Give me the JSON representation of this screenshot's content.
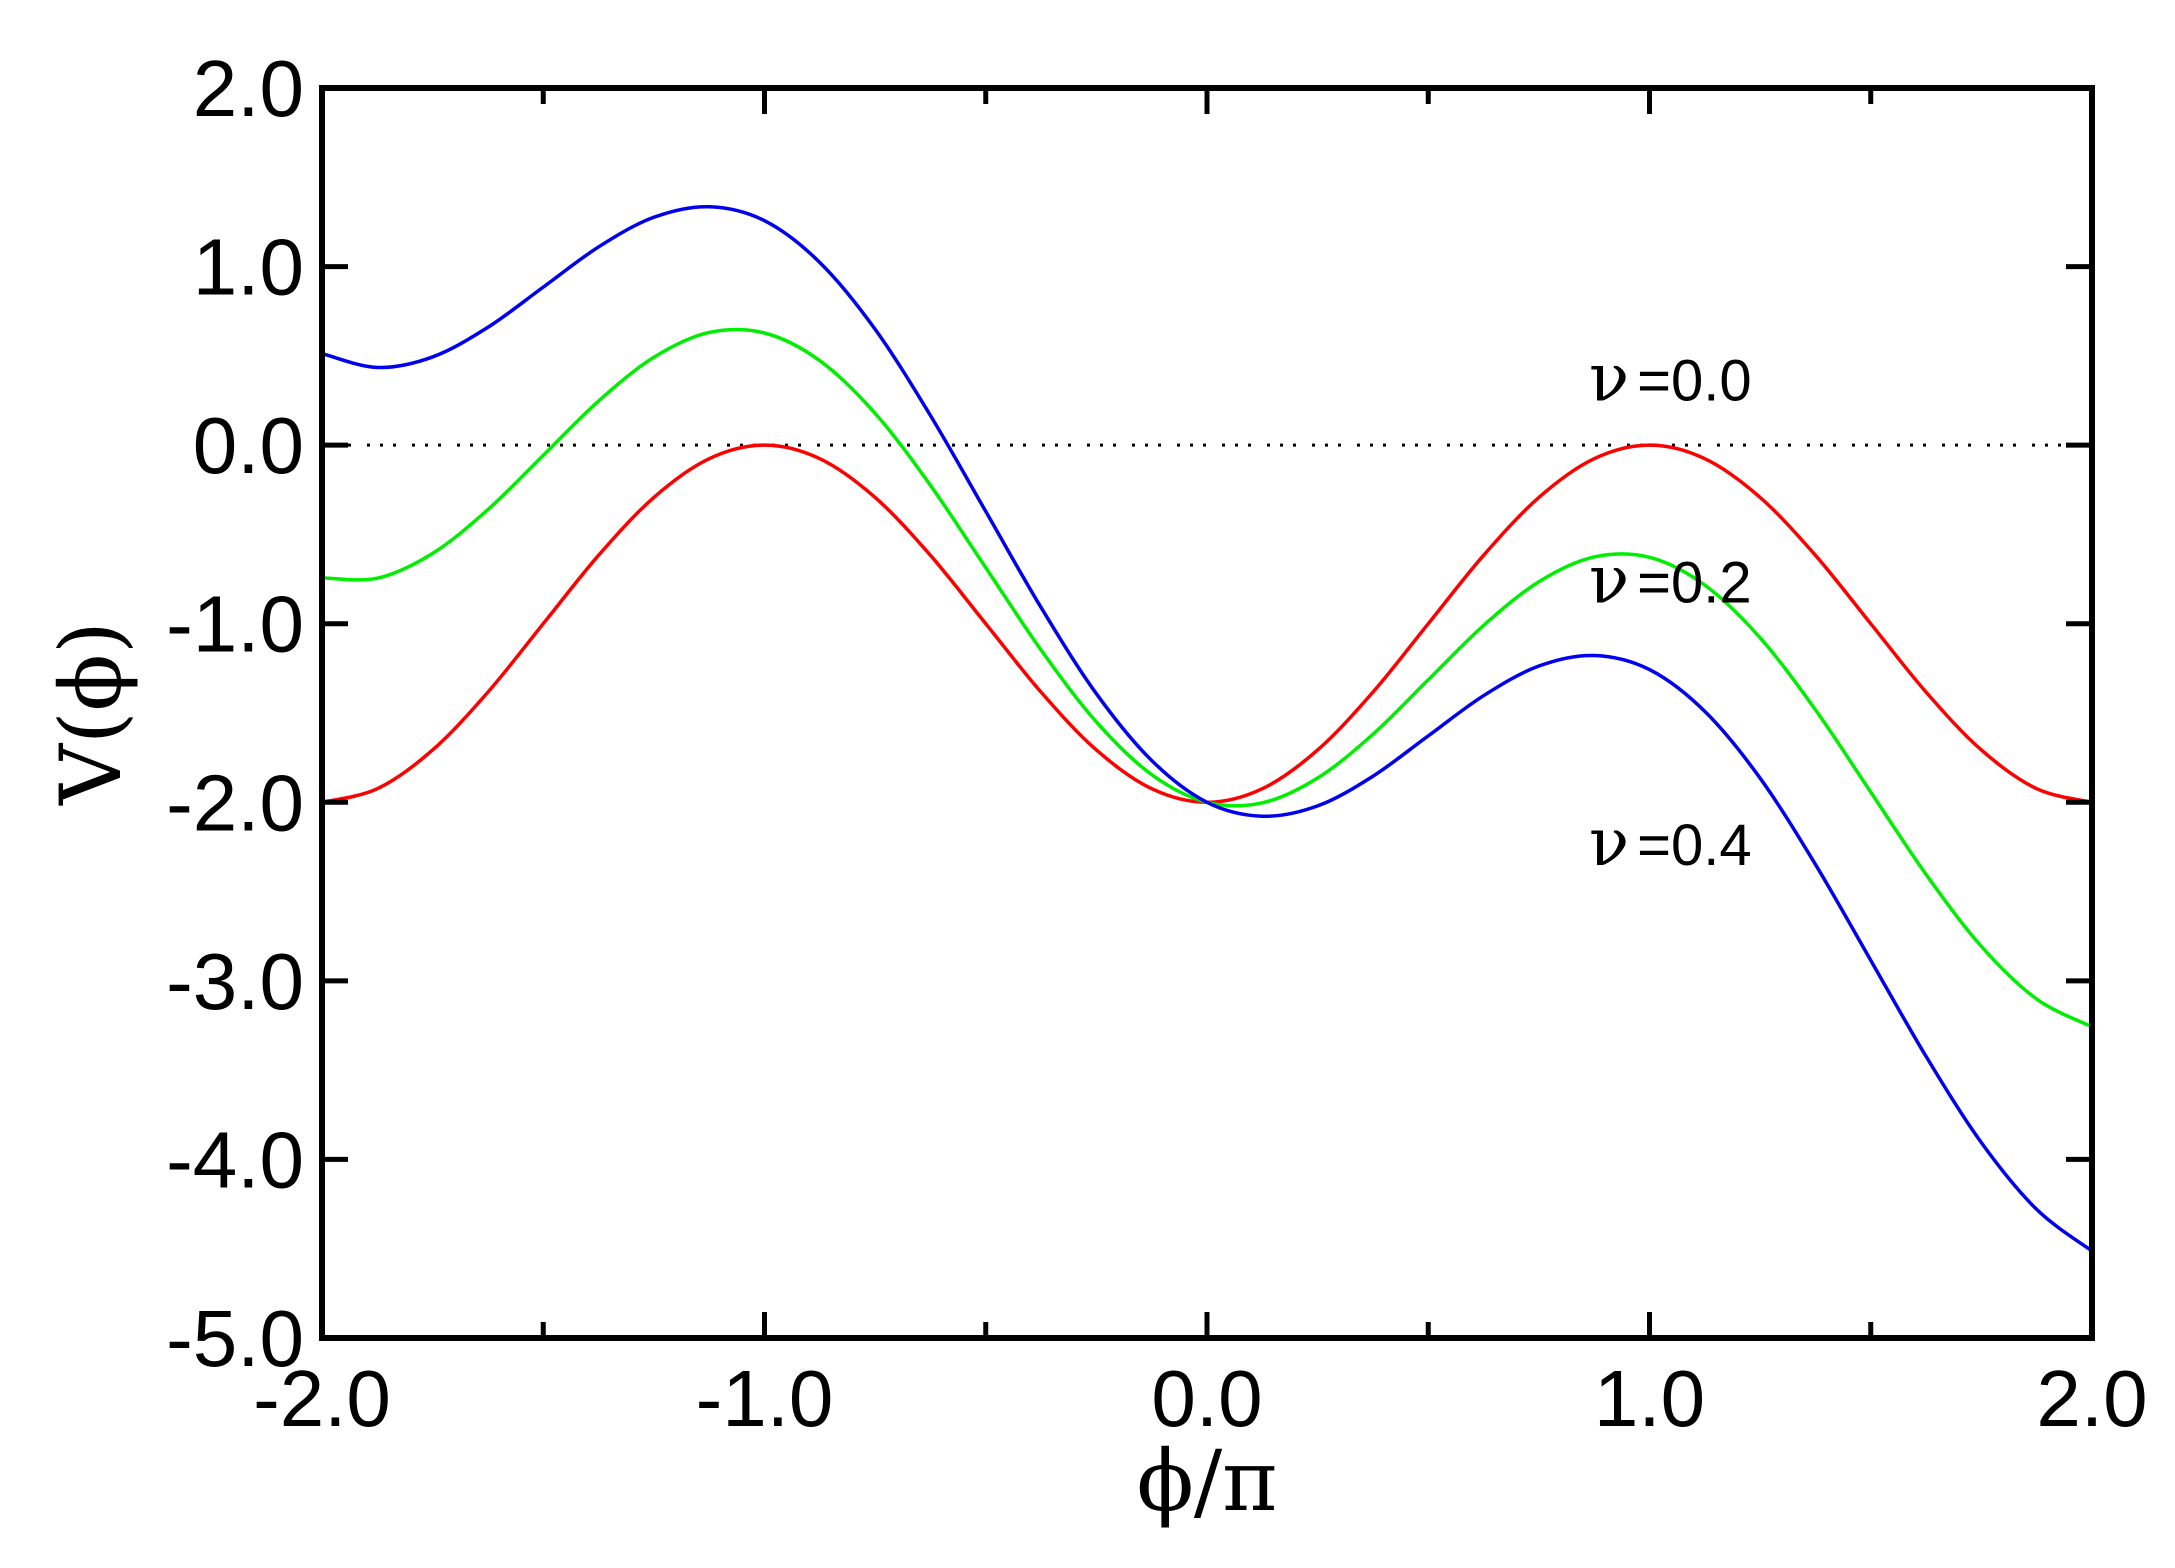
{
  "chart_data": {
    "type": "line",
    "title": "",
    "xlabel": "ϕ/π",
    "ylabel": "V(ϕ)",
    "xlim": [
      -2.0,
      2.0
    ],
    "ylim": [
      -5.0,
      2.0
    ],
    "xticks": [
      -2.0,
      -1.0,
      0.0,
      1.0,
      2.0
    ],
    "xtick_labels": [
      "-2.0",
      "-1.0",
      "0.0",
      "1.0",
      "2.0"
    ],
    "yticks": [
      2.0,
      1.0,
      0.0,
      -1.0,
      -2.0,
      -3.0,
      -4.0,
      -5.0
    ],
    "ytick_labels": [
      "2.0",
      "1.0",
      "0.0",
      "-1.0",
      "-2.0",
      "-3.0",
      "-4.0",
      "-5.0"
    ],
    "grid": false,
    "legend": "none",
    "reference_line": {
      "y": 0.0,
      "style": "dotted",
      "color": "#000000"
    },
    "annotations": [
      {
        "text": "=0.0",
        "symbol": "ν",
        "series": 0,
        "x": 0.8,
        "y": 0.25
      },
      {
        "text": "=0.2",
        "symbol": "ν",
        "series": 1,
        "x": 0.8,
        "y": -0.88
      },
      {
        "text": "=0.4",
        "symbol": "ν",
        "series": 2,
        "x": 0.8,
        "y": -2.35
      }
    ],
    "series": [
      {
        "nu": 0.0,
        "color": "#ff0000",
        "x": [
          -2.0,
          -1.875,
          -1.75,
          -1.625,
          -1.5,
          -1.375,
          -1.25,
          -1.125,
          -1.0,
          -0.875,
          -0.75,
          -0.625,
          -0.5,
          -0.375,
          -0.25,
          -0.125,
          0.0,
          0.125,
          0.25,
          0.375,
          0.5,
          0.625,
          0.75,
          0.875,
          1.0,
          1.125,
          1.25,
          1.375,
          1.5,
          1.625,
          1.75,
          1.875,
          2.0
        ],
        "y": [
          -2.0,
          -1.924,
          -1.707,
          -1.383,
          -1.0,
          -0.617,
          -0.293,
          -0.076,
          0.0,
          -0.076,
          -0.293,
          -0.617,
          -1.0,
          -1.383,
          -1.707,
          -1.924,
          -2.0,
          -1.924,
          -1.707,
          -1.383,
          -1.0,
          -0.617,
          -0.293,
          -0.076,
          0.0,
          -0.076,
          -0.293,
          -0.617,
          -1.0,
          -1.383,
          -1.707,
          -1.924,
          -2.0
        ]
      },
      {
        "nu": 0.2,
        "color": "#00ee00",
        "x": [
          -2.0,
          -1.875,
          -1.75,
          -1.625,
          -1.5,
          -1.375,
          -1.25,
          -1.125,
          -1.0,
          -0.875,
          -0.75,
          -0.625,
          -0.5,
          -0.375,
          -0.25,
          -0.125,
          0.0,
          0.125,
          0.25,
          0.375,
          0.5,
          0.625,
          0.75,
          0.875,
          1.0,
          1.125,
          1.25,
          1.375,
          1.5,
          1.625,
          1.75,
          1.875,
          2.0
        ],
        "y": [
          -0.743,
          -0.745,
          -0.606,
          -0.361,
          -0.057,
          0.247,
          0.492,
          0.631,
          0.628,
          0.473,
          0.178,
          -0.225,
          -0.686,
          -1.147,
          -1.55,
          -1.845,
          -2.0,
          -2.003,
          -1.864,
          -1.619,
          -1.314,
          -1.01,
          -0.765,
          -0.626,
          -0.628,
          -0.784,
          -1.079,
          -1.482,
          -1.943,
          -2.404,
          -2.807,
          -3.102,
          -3.257
        ]
      },
      {
        "nu": 0.4,
        "color": "#0000ee",
        "x": [
          -2.0,
          -1.875,
          -1.75,
          -1.625,
          -1.5,
          -1.375,
          -1.25,
          -1.125,
          -1.0,
          -0.875,
          -0.75,
          -0.625,
          -0.5,
          -0.375,
          -0.25,
          -0.125,
          0.0,
          0.125,
          0.25,
          0.375,
          0.5,
          0.625,
          0.75,
          0.875,
          1.0,
          1.125,
          1.25,
          1.375,
          1.5,
          1.625,
          1.75,
          1.875,
          2.0
        ],
        "y": [
          0.513,
          0.435,
          0.494,
          0.66,
          0.885,
          1.11,
          1.276,
          1.335,
          1.257,
          1.023,
          0.649,
          0.166,
          -0.371,
          -0.909,
          -1.392,
          -1.766,
          -2.0,
          -2.078,
          -2.02,
          -1.854,
          -1.628,
          -1.403,
          -1.237,
          -1.178,
          -1.257,
          -1.491,
          -1.865,
          -2.348,
          -2.885,
          -3.423,
          -3.906,
          -4.28,
          -4.513
        ]
      }
    ]
  }
}
